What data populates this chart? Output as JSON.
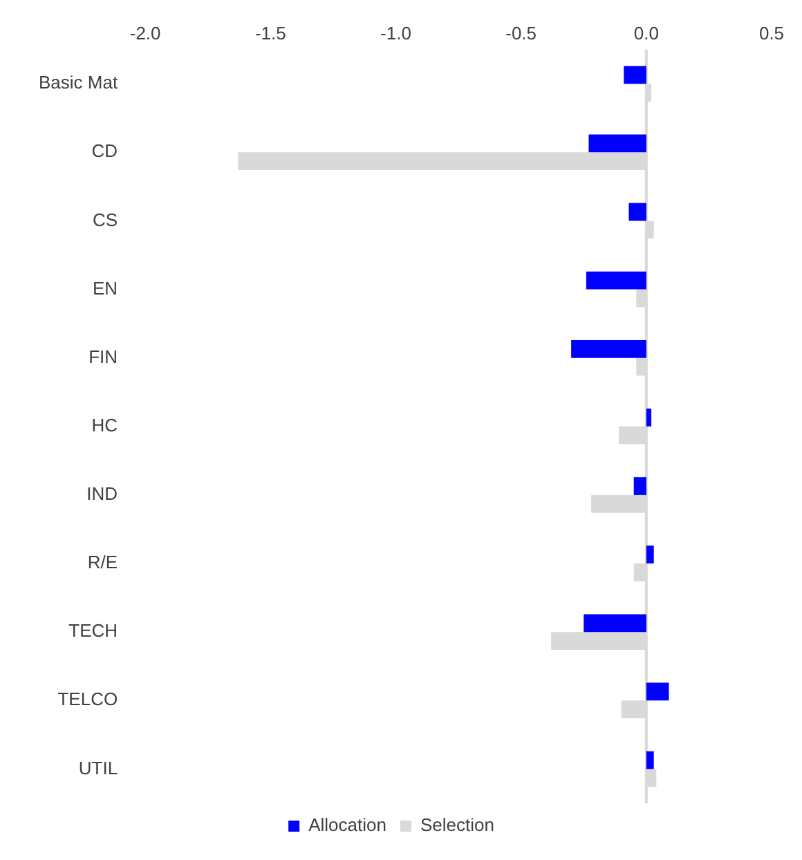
{
  "chart_data": {
    "type": "bar",
    "orientation": "horizontal",
    "categories": [
      "Basic Mat",
      "CD",
      "CS",
      "EN",
      "FIN",
      "HC",
      "IND",
      "R/E",
      "TECH",
      "TELCO",
      "UTIL"
    ],
    "series": [
      {
        "name": "Allocation",
        "color": "#0000ff",
        "values": [
          -0.09,
          -0.23,
          -0.07,
          -0.24,
          -0.3,
          0.02,
          -0.05,
          0.03,
          -0.25,
          0.09,
          0.03
        ]
      },
      {
        "name": "Selection",
        "color": "#d9d9d9",
        "values": [
          0.02,
          -1.63,
          0.03,
          -0.04,
          -0.04,
          -0.11,
          -0.22,
          -0.05,
          -0.38,
          -0.1,
          0.04
        ]
      }
    ],
    "xlim": [
      -2,
      0.5
    ],
    "xticks": [
      {
        "value": -2,
        "label": "-2.0"
      },
      {
        "value": -1.5,
        "label": "-1.5"
      },
      {
        "value": -1,
        "label": "-1.0"
      },
      {
        "value": -0.5,
        "label": "-0.5"
      },
      {
        "value": 0,
        "label": "0.0"
      },
      {
        "value": 0.5,
        "label": "0.5"
      }
    ],
    "ref_lines": [
      {
        "axis": "x",
        "value": 0,
        "color": "#d9d9d9"
      }
    ],
    "grid": false,
    "legend": "bottom"
  }
}
